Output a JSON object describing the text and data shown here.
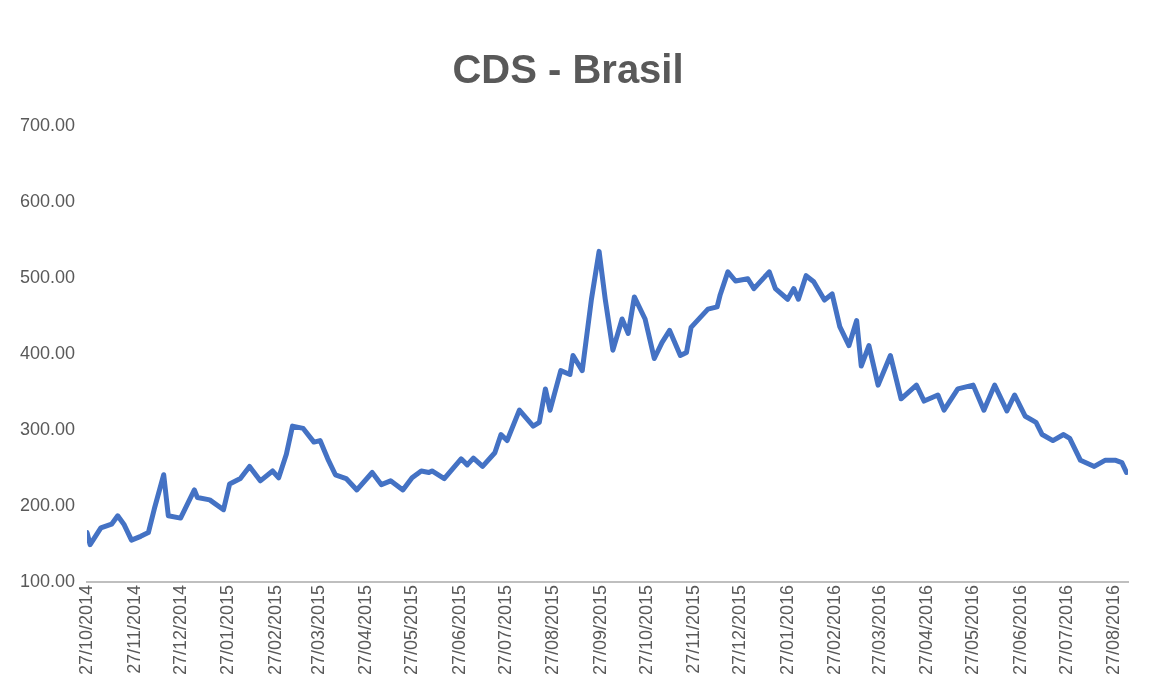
{
  "chart_data": {
    "type": "line",
    "title": "CDS - Brasil",
    "x": [
      "2014-10-27",
      "2014-10-29",
      "2014-11-05",
      "2014-11-12",
      "2014-11-16",
      "2014-11-20",
      "2014-11-25",
      "2014-12-01",
      "2014-12-06",
      "2014-12-10",
      "2014-12-16",
      "2014-12-19",
      "2014-12-27",
      "2015-01-05",
      "2015-01-07",
      "2015-01-15",
      "2015-01-24",
      "2015-01-28",
      "2015-02-04",
      "2015-02-10",
      "2015-02-17",
      "2015-02-25",
      "2015-03-01",
      "2015-03-06",
      "2015-03-10",
      "2015-03-17",
      "2015-03-24",
      "2015-03-28",
      "2015-04-02",
      "2015-04-07",
      "2015-04-14",
      "2015-04-21",
      "2015-05-01",
      "2015-05-07",
      "2015-05-13",
      "2015-05-21",
      "2015-05-27",
      "2015-06-02",
      "2015-06-07",
      "2015-06-09",
      "2015-06-17",
      "2015-06-28",
      "2015-07-02",
      "2015-07-06",
      "2015-07-12",
      "2015-07-20",
      "2015-07-24",
      "2015-07-28",
      "2015-08-05",
      "2015-08-14",
      "2015-08-18",
      "2015-08-22",
      "2015-08-25",
      "2015-09-01",
      "2015-09-07",
      "2015-09-09",
      "2015-09-15",
      "2015-09-21",
      "2015-09-26",
      "2015-09-30",
      "2015-10-05",
      "2015-10-11",
      "2015-10-15",
      "2015-10-19",
      "2015-10-26",
      "2015-11-01",
      "2015-11-06",
      "2015-11-11",
      "2015-11-18",
      "2015-11-22",
      "2015-11-25",
      "2015-12-06",
      "2015-12-12",
      "2015-12-14",
      "2015-12-19",
      "2015-12-24",
      "2016-01-01",
      "2016-01-05",
      "2016-01-15",
      "2016-01-19",
      "2016-01-27",
      "2016-01-31",
      "2016-02-03",
      "2016-02-08",
      "2016-02-13",
      "2016-02-20",
      "2016-02-25",
      "2016-03-01",
      "2016-03-07",
      "2016-03-12",
      "2016-03-15",
      "2016-03-20",
      "2016-03-26",
      "2016-04-03",
      "2016-04-10",
      "2016-04-20",
      "2016-04-25",
      "2016-05-04",
      "2016-05-08",
      "2016-05-17",
      "2016-05-27",
      "2016-06-03",
      "2016-06-10",
      "2016-06-18",
      "2016-06-23",
      "2016-06-30",
      "2016-07-07",
      "2016-07-11",
      "2016-07-18",
      "2016-07-25",
      "2016-07-29",
      "2016-08-05",
      "2016-08-14",
      "2016-08-21",
      "2016-08-28",
      "2016-09-01",
      "2016-09-04"
    ],
    "series": [
      {
        "color": "#4472c4",
        "values": [
          165,
          149,
          171,
          176,
          187,
          176,
          155,
          160,
          165,
          197,
          241,
          187,
          184,
          221,
          211,
          208,
          195,
          229,
          236,
          252,
          233,
          246,
          237,
          268,
          305,
          302,
          284,
          286,
          262,
          241,
          236,
          221,
          244,
          228,
          233,
          221,
          237,
          246,
          244,
          246,
          236,
          262,
          254,
          263,
          252,
          270,
          294,
          286,
          326,
          305,
          310,
          354,
          326,
          378,
          373,
          398,
          378,
          472,
          535,
          472,
          405,
          446,
          427,
          475,
          446,
          394,
          415,
          431,
          398,
          402,
          435,
          459,
          462,
          478,
          508,
          496,
          499,
          486,
          508,
          486,
          472,
          486,
          472,
          503,
          495,
          471,
          479,
          436,
          411,
          444,
          384,
          411,
          359,
          398,
          341,
          359,
          338,
          346,
          326,
          354,
          359,
          326,
          359,
          325,
          346,
          318,
          310,
          294,
          286,
          294,
          289,
          260,
          252,
          260,
          260,
          257,
          244
        ]
      }
    ],
    "xlim": [
      "2014-10-27",
      "2016-09-05"
    ],
    "xticks": [
      {
        "value": "2014-10-27",
        "label": "27/10/2014"
      },
      {
        "value": "2014-11-27",
        "label": "27/11/2014"
      },
      {
        "value": "2014-12-27",
        "label": "27/12/2014"
      },
      {
        "value": "2015-01-27",
        "label": "27/01/2015"
      },
      {
        "value": "2015-02-27",
        "label": "27/02/2015"
      },
      {
        "value": "2015-03-27",
        "label": "27/03/2015"
      },
      {
        "value": "2015-04-27",
        "label": "27/04/2015"
      },
      {
        "value": "2015-05-27",
        "label": "27/05/2015"
      },
      {
        "value": "2015-06-27",
        "label": "27/06/2015"
      },
      {
        "value": "2015-07-27",
        "label": "27/07/2015"
      },
      {
        "value": "2015-08-27",
        "label": "27/08/2015"
      },
      {
        "value": "2015-09-27",
        "label": "27/09/2015"
      },
      {
        "value": "2015-10-27",
        "label": "27/10/2015"
      },
      {
        "value": "2015-11-27",
        "label": "27/11/2015"
      },
      {
        "value": "2015-12-27",
        "label": "27/12/2015"
      },
      {
        "value": "2016-01-27",
        "label": "27/01/2016"
      },
      {
        "value": "2016-02-27",
        "label": "27/02/2016"
      },
      {
        "value": "2016-03-27",
        "label": "27/03/2016"
      },
      {
        "value": "2016-04-27",
        "label": "27/04/2016"
      },
      {
        "value": "2016-05-27",
        "label": "27/05/2016"
      },
      {
        "value": "2016-06-27",
        "label": "27/06/2016"
      },
      {
        "value": "2016-07-27",
        "label": "27/07/2016"
      },
      {
        "value": "2016-08-27",
        "label": "27/08/2016"
      }
    ],
    "ylim": [
      100,
      700
    ],
    "yticks": [
      {
        "value": 100,
        "label": "100.00"
      },
      {
        "value": 200,
        "label": "200.00"
      },
      {
        "value": 300,
        "label": "300.00"
      },
      {
        "value": 400,
        "label": "400.00"
      },
      {
        "value": 500,
        "label": "500.00"
      },
      {
        "value": 600,
        "label": "600.00"
      },
      {
        "value": 700,
        "label": "700.00"
      }
    ],
    "grid": false,
    "legend": false,
    "marker": "none",
    "line_style": "solid"
  }
}
